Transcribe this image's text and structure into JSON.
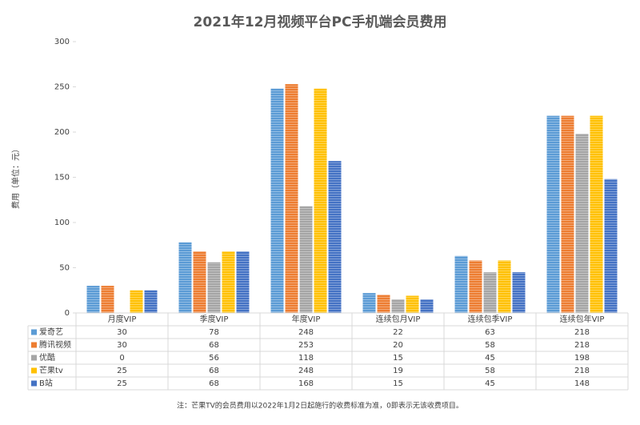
{
  "chart_data": {
    "type": "bar",
    "title": "2021年12月视频平台PC手机端会员费用",
    "y_label": "费用（单位：元）",
    "note": "注：芒果TV的会员费用以2022年1月2日起施行的收费标准为准，0即表示无该收费项目。",
    "categories": [
      "月度VIP",
      "季度VIP",
      "年度VIP",
      "连续包月VIP",
      "连续包季VIP",
      "连续包年VIP"
    ],
    "series": [
      {
        "name": "爱奇艺",
        "color": "#5b9bd5",
        "values": [
          30,
          78,
          248,
          22,
          63,
          218
        ]
      },
      {
        "name": "腾讯视频",
        "color": "#ed7d31",
        "values": [
          30,
          68,
          253,
          20,
          58,
          218
        ]
      },
      {
        "name": "优酷",
        "color": "#a5a5a5",
        "values": [
          0,
          56,
          118,
          15,
          45,
          198
        ]
      },
      {
        "name": "芒果tv",
        "color": "#ffc000",
        "values": [
          25,
          68,
          248,
          19,
          58,
          218
        ]
      },
      {
        "name": "B站",
        "color": "#4472c4",
        "values": [
          25,
          68,
          168,
          15,
          45,
          148
        ]
      }
    ],
    "ylim": [
      0,
      300
    ],
    "yticks": [
      0,
      50,
      100,
      150,
      200,
      250,
      300
    ],
    "grid": false
  }
}
